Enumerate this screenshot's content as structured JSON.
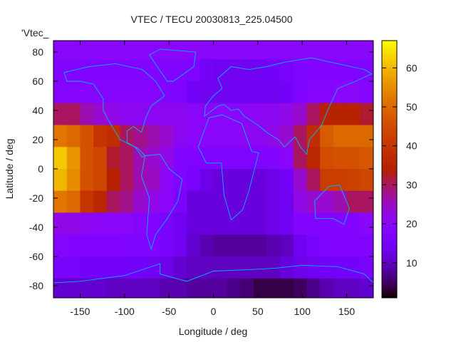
{
  "chart_data": {
    "type": "heatmap",
    "title": "VTEC / TECU 20030813_225.04500",
    "xlabel": "Longitude / deg",
    "ylabel": "Latitude / deg",
    "legend": {
      "label": "'Vtec_",
      "placement": "top-left"
    },
    "xlim": [
      -180,
      180
    ],
    "ylim": [
      -88,
      88
    ],
    "xticks": [
      -150,
      -100,
      -50,
      0,
      50,
      100,
      150
    ],
    "yticks": [
      -80,
      -60,
      -40,
      -20,
      0,
      20,
      40,
      60,
      80
    ],
    "colorbar": {
      "range": [
        1,
        67
      ],
      "ticks": [
        10,
        20,
        30,
        40,
        50,
        60
      ],
      "palette": "black-blue-purple-red-yellow"
    },
    "grid_lon": [
      -172.5,
      -157.5,
      -142.5,
      -127.5,
      -112.5,
      -97.5,
      -82.5,
      -67.5,
      -52.5,
      -37.5,
      -22.5,
      -7.5,
      7.5,
      22.5,
      37.5,
      52.5,
      67.5,
      82.5,
      97.5,
      112.5,
      127.5,
      142.5,
      157.5,
      172.5
    ],
    "grid_lat": [
      82.5,
      67.5,
      52.5,
      37.5,
      22.5,
      7.5,
      -7.5,
      -22.5,
      -37.5,
      -52.5,
      -67.5,
      -82.5
    ],
    "values": [
      [
        20,
        20,
        20,
        20,
        20,
        20,
        20,
        20,
        20,
        20,
        20,
        20,
        20,
        20,
        20,
        20,
        20,
        20,
        20,
        20,
        20,
        20,
        20,
        20
      ],
      [
        18,
        18,
        18,
        18,
        18,
        18,
        18,
        18,
        18,
        18,
        17,
        15,
        14,
        14,
        14,
        14,
        15,
        16,
        17,
        18,
        18,
        18,
        18,
        18
      ],
      [
        19,
        19,
        19,
        19,
        19,
        19,
        19,
        19,
        18,
        17,
        15,
        14,
        14,
        14,
        14,
        14,
        14,
        15,
        17,
        19,
        19,
        20,
        20,
        19
      ],
      [
        30,
        30,
        26,
        24,
        22,
        21,
        21,
        21,
        21,
        21,
        20,
        20,
        20,
        20,
        20,
        21,
        21,
        22,
        24,
        30,
        35,
        35,
        35,
        32
      ],
      [
        52,
        50,
        46,
        40,
        38,
        30,
        28,
        26,
        24,
        21,
        20,
        20,
        20,
        20,
        21,
        21,
        22,
        24,
        30,
        38,
        48,
        50,
        50,
        50
      ],
      [
        62,
        56,
        46,
        44,
        32,
        30,
        26,
        24,
        22,
        18,
        17,
        17,
        17,
        17,
        17,
        17,
        18,
        20,
        30,
        36,
        45,
        46,
        46,
        47
      ],
      [
        60,
        55,
        46,
        44,
        34,
        30,
        26,
        25,
        20,
        18,
        16,
        13,
        12,
        12,
        12,
        12,
        13,
        15,
        24,
        30,
        42,
        42,
        43,
        44
      ],
      [
        52,
        50,
        40,
        36,
        30,
        28,
        24,
        22,
        20,
        16,
        12,
        12,
        12,
        12,
        12,
        12,
        13,
        14,
        22,
        24,
        24,
        26,
        30,
        30
      ],
      [
        22,
        22,
        21,
        20,
        20,
        20,
        19,
        18,
        16,
        14,
        12,
        12,
        12,
        12,
        12,
        12,
        13,
        14,
        18,
        18,
        18,
        18,
        18,
        20
      ],
      [
        19,
        18,
        18,
        18,
        18,
        17,
        17,
        17,
        16,
        14,
        11,
        9,
        8,
        8,
        8,
        8,
        9,
        10,
        14,
        16,
        17,
        18,
        18,
        18
      ],
      [
        16,
        16,
        15,
        15,
        15,
        15,
        15,
        14,
        13,
        11,
        10,
        10,
        10,
        10,
        10,
        10,
        10,
        12,
        13,
        14,
        15,
        15,
        15,
        16
      ],
      [
        11,
        11,
        11,
        11,
        10,
        10,
        10,
        10,
        9,
        9,
        8,
        8,
        8,
        7,
        6,
        4,
        4,
        4,
        5,
        7,
        9,
        10,
        10,
        11
      ]
    ]
  }
}
